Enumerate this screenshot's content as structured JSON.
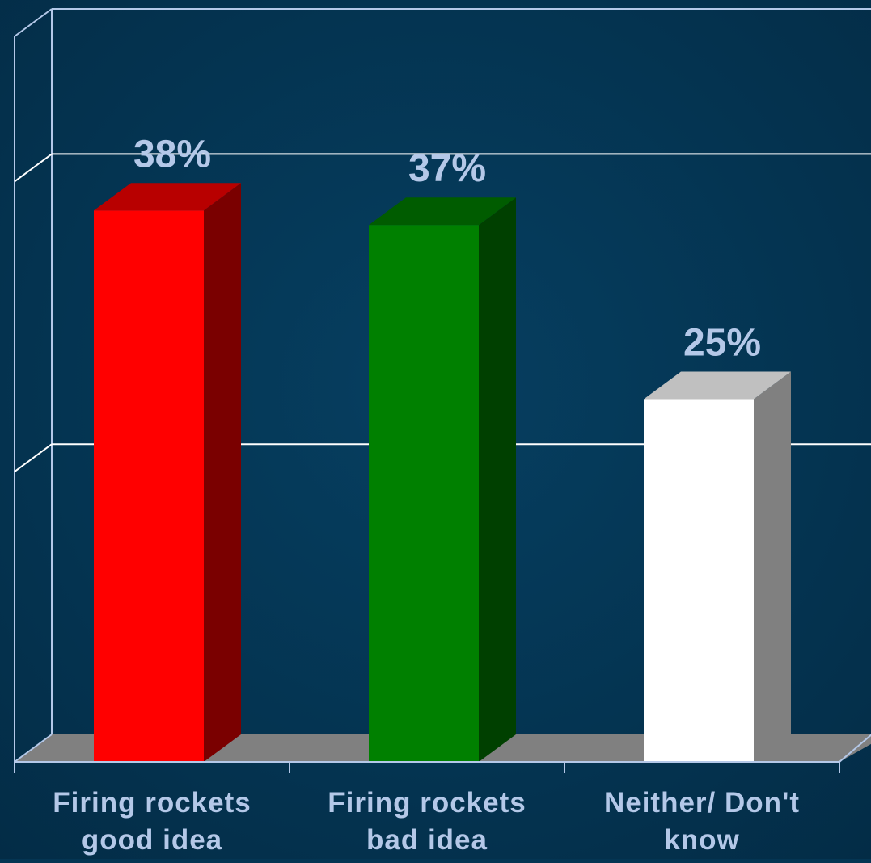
{
  "chart_data": {
    "type": "bar",
    "style": "3d-column",
    "categories": [
      "Firing rockets good idea",
      "Firing rockets bad idea",
      "Neither/ Don't know"
    ],
    "category_lines": [
      [
        "Firing rockets",
        "good idea"
      ],
      [
        "Firing rockets",
        "bad idea"
      ],
      [
        "Neither/ Don't",
        "know"
      ]
    ],
    "values": [
      38,
      37,
      25
    ],
    "data_labels": [
      "38%",
      "37%",
      "25%"
    ],
    "value_unit": "%",
    "ylim": [
      0,
      50
    ],
    "y_gridlines": [
      20,
      40
    ],
    "grid": true,
    "title": "",
    "xlabel": "",
    "ylabel": "",
    "legend": "none",
    "colors": {
      "background": "#043553",
      "floor": "#808080",
      "gridline": "#FFFFFF",
      "axis": "#B4C8E8",
      "label_text": "#B4C8E8",
      "bars": [
        {
          "front": "#FF0000",
          "top": "#B80000",
          "side": "#7A0000"
        },
        {
          "front": "#008000",
          "top": "#005C00",
          "side": "#004000"
        },
        {
          "front": "#FFFFFF",
          "top": "#C0C0C0",
          "side": "#808080"
        }
      ]
    }
  }
}
